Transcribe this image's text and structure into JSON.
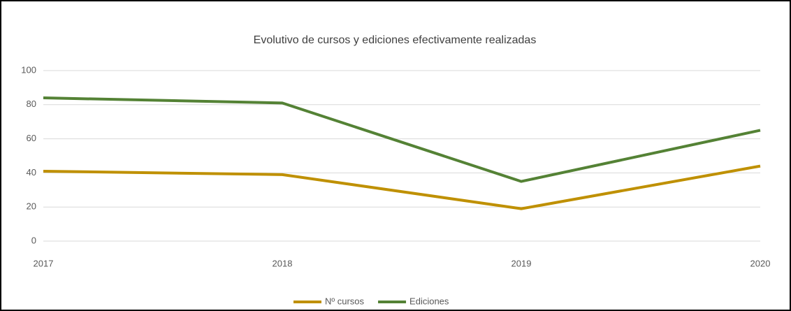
{
  "chart_data": {
    "type": "line",
    "title": "Evolutivo de cursos y ediciones efectivamente realizadas",
    "categories": [
      "2017",
      "2018",
      "2019",
      "2020"
    ],
    "series": [
      {
        "name": "Nº cursos",
        "color": "#bf9000",
        "values": [
          41,
          39,
          19,
          44
        ]
      },
      {
        "name": "Ediciones",
        "color": "#548235",
        "values": [
          84,
          81,
          35,
          65
        ]
      }
    ],
    "ylim": [
      0,
      100
    ],
    "yticks": [
      0,
      20,
      40,
      60,
      80,
      100
    ],
    "grid": true,
    "legend": "bottom"
  }
}
